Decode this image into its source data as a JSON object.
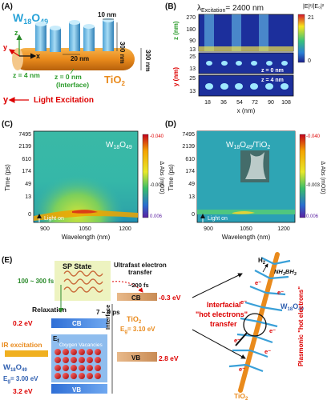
{
  "panel_a": {
    "label": "(A)",
    "w18o49": "W",
    "w18o49_sub": "18",
    "w18o49_o": "O",
    "w18o49_sub2": "49",
    "d10": "10 nm",
    "d300": "300 nm",
    "d300b": "300 nm",
    "d20": "20 nm",
    "z4": "z = 4 nm",
    "z0": "z = 0 nm",
    "interface": "(Interface)",
    "tio2": "TiO",
    "tio2_sub": "2",
    "axis_z": "z",
    "axis_x": "x",
    "axis_y": "y",
    "light": "y",
    "light_text": "Light Excitation"
  },
  "panel_b": {
    "label": "(B)",
    "title": "λ",
    "title_sub": "Excitation",
    "title_val": "= 2400 nm",
    "cb_title": "|E|²/|E₀|²",
    "cb_max": "21",
    "cb_min": "0",
    "ylabel_z": "z (nm)",
    "ylabel_y": "y (nm)",
    "yticks_top": [
      "270",
      "180",
      "90",
      "13"
    ],
    "yticks_mid": [
      "25",
      "13"
    ],
    "yticks_bot": [
      "25",
      "13"
    ],
    "xlabel": "x (nm)",
    "xticks": [
      "18",
      "36",
      "54",
      "72",
      "90",
      "108"
    ],
    "tag_z0": "z = 0 nm",
    "tag_z4": "z = 4 nm"
  },
  "panel_c": {
    "label": "(C)",
    "material": "W",
    "material_sub": "18",
    "material_o": "O",
    "material_sub2": "49",
    "ylabel": "Time (ps)",
    "yticks": [
      "7495",
      "2139",
      "610",
      "174",
      "49",
      "13",
      "0"
    ],
    "xlabel": "Wavelength (nm)",
    "xticks": [
      "900",
      "1050",
      "1200"
    ],
    "cb_label": "Δ Abs (mOD)",
    "cb_ticks": [
      "-0.040",
      "-0.003",
      "0.006"
    ],
    "light_on": "Light on"
  },
  "panel_d": {
    "label": "(D)",
    "material": "W",
    "material_sub": "18",
    "material_o": "O",
    "material_sub2": "49",
    "material_tail": "/TiO",
    "material_sub3": "2",
    "ylabel": "Time (ps)",
    "yticks": [
      "7495",
      "2139",
      "610",
      "174",
      "49",
      "13",
      "0"
    ],
    "xlabel": "Wavelength (nm)",
    "xticks": [
      "900",
      "1050",
      "1200"
    ],
    "cb_label": "Δ Abs (mOD)",
    "cb_ticks": [
      "-0.040",
      "-0.003",
      "0.006"
    ],
    "light_on": "Light on"
  },
  "panel_e": {
    "label": "(E)",
    "sp_state": "SP State",
    "ultrafast": "Ultrafast electron",
    "transfer": "transfer",
    "t200": "~200 fs",
    "t100": "100 ~ 300 fs",
    "relaxation": "Relaxation",
    "cb": "CB",
    "cb_tio2": "CB",
    "ef": "E",
    "ef_sub": "f",
    "t7": "7 ~ 9 ps",
    "interface": "Interface",
    "tio2": "TiO",
    "tio2_sub": "2",
    "eg_tio2": "E",
    "eg_tio2_sub": "g",
    "eg_tio2_val": "= 3.10 eV",
    "v02": "0.2 eV",
    "vm03": "-0.3 eV",
    "ir": "IR excitation",
    "w": "W",
    "w_sub": "18",
    "w_o": "O",
    "w_sub2": "49",
    "eg_w": "E",
    "eg_w_sub": "g",
    "eg_w_val": "= 3.00 eV",
    "vacancies": "Oxygen Vacancies",
    "vb": "VB",
    "vb_tio2": "VB",
    "v28": "2.8 eV",
    "v32": "3.2 eV",
    "interfacial": "Interfacial",
    "hot": "\"hot electrons\"",
    "hot_transfer": "transfer",
    "h2": "H",
    "h2_sub": "2",
    "nh3bh3": "NH",
    "nh3bh3_sub": "3",
    "nh3bh3_b": "BH",
    "nh3bh3_sub2": "3",
    "w18o49_r": "W",
    "w18o49_r_sub": "18",
    "w18o49_r_o": "O",
    "w18o49_r_sub2": "49",
    "plasmonic": "Plasmonic \"hot electrons\"",
    "tio2_r": "TiO",
    "tio2_r_sub": "2",
    "eminus": "e⁻"
  }
}
